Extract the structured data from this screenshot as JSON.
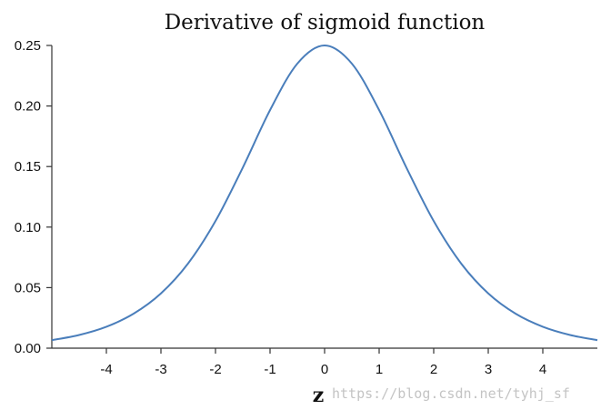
{
  "chart_data": {
    "type": "line",
    "title": "Derivative of sigmoid function",
    "xlabel": "z",
    "ylabel": "",
    "xlim": [
      -5,
      5
    ],
    "ylim": [
      0,
      0.25
    ],
    "x_ticks": [
      -4,
      -3,
      -2,
      -1,
      0,
      1,
      2,
      3,
      4
    ],
    "y_ticks": [
      0.0,
      0.05,
      0.1,
      0.15,
      0.2,
      0.25
    ],
    "y_tick_labels": [
      "0.00",
      "0.05",
      "0.10",
      "0.15",
      "0.20",
      "0.25"
    ],
    "series": [
      {
        "x": [
          -5,
          -4.5,
          -4,
          -3.5,
          -3,
          -2.5,
          -2,
          -1.5,
          -1,
          -0.5,
          0,
          0.5,
          1,
          1.5,
          2,
          2.5,
          3,
          3.5,
          4,
          4.5,
          5
        ],
        "y": [
          0.0066,
          0.0109,
          0.0177,
          0.0285,
          0.0452,
          0.0701,
          0.105,
          0.1491,
          0.1966,
          0.235,
          0.25,
          0.235,
          0.1966,
          0.1491,
          0.105,
          0.0701,
          0.0452,
          0.0285,
          0.0177,
          0.0109,
          0.0066
        ],
        "color": "#4a7ebb"
      }
    ],
    "grid": false,
    "legend": "none"
  },
  "watermark": "https://blog.csdn.net/tyhj_sf"
}
